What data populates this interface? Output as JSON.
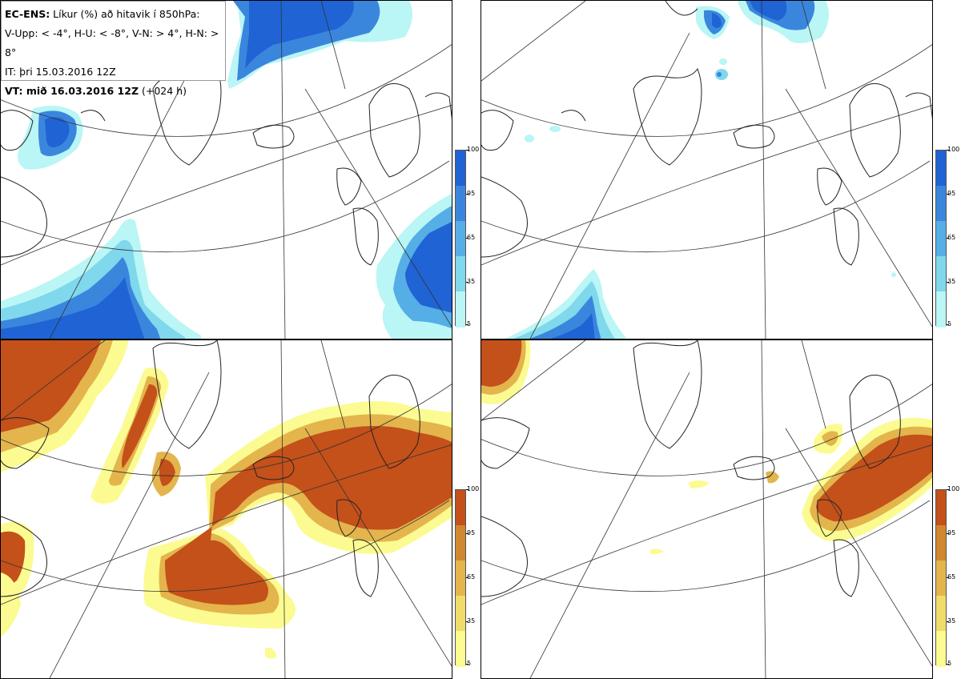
{
  "header": {
    "line1_bold": "EC-ENS:",
    "line1_rest": " Líkur (%) að hitavik í 850hPa:",
    "line2": "V-Upp: < -4°, H-U: < -8°, V-N: > 4°, H-N: > 8°",
    "line3": "IT: þri 15.03.2016 12Z",
    "line4_bold": "VT: mið 16.03.2016 12Z",
    "line4_rest": " (+024 h)"
  },
  "colorbars": {
    "ticks": [
      "100",
      "95",
      "65",
      "35",
      "5"
    ],
    "cold_colors": [
      "#1f63d4",
      "#3b86dd",
      "#55aee6",
      "#7fd8ec",
      "#b9f6f5"
    ],
    "warm_colors": [
      "#c4501a",
      "#d1872f",
      "#e3b54c",
      "#f0dc6a",
      "#fbfb91"
    ]
  },
  "panels": [
    {
      "name": "upper-left",
      "variable": "V-Upp",
      "theme": "cold"
    },
    {
      "name": "upper-right",
      "variable": "H-U",
      "theme": "cold"
    },
    {
      "name": "lower-left",
      "variable": "V-N",
      "theme": "warm"
    },
    {
      "name": "lower-right",
      "variable": "H-N",
      "theme": "warm"
    }
  ]
}
